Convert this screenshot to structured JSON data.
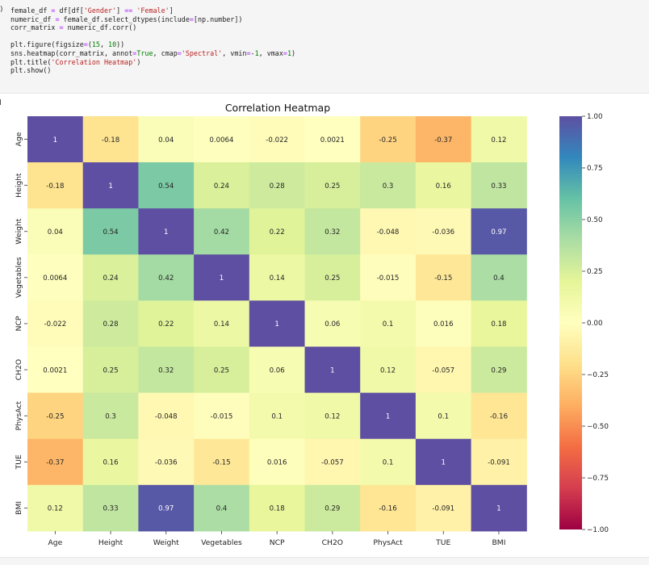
{
  "code_cell": {
    "prompt_glyph": ")",
    "lines": [
      "female_df = df[df['Gender'] == 'Female']",
      "numeric_df = female_df.select_dtypes(include=[np.number])",
      "corr_matrix = numeric_df.corr()",
      "",
      "plt.figure(figsize=(15, 10))",
      "sns.heatmap(corr_matrix, annot=True, cmap='Spectral', vmin=-1, vmax=1)",
      "plt.title('Correlation Heatmap')",
      "plt.show()"
    ]
  },
  "chart_data": {
    "type": "heatmap",
    "title": "Correlation Heatmap",
    "cmap": "Spectral",
    "vmin": -1,
    "vmax": 1,
    "labels": [
      "Age",
      "Height",
      "Weight",
      "Vegetables",
      "NCP",
      "CH2O",
      "PhysAct",
      "TUE",
      "BMI"
    ],
    "values": [
      [
        1,
        -0.18,
        0.04,
        0.0064,
        -0.022,
        0.0021,
        -0.25,
        -0.37,
        0.12
      ],
      [
        -0.18,
        1,
        0.54,
        0.24,
        0.28,
        0.25,
        0.3,
        0.16,
        0.33
      ],
      [
        0.04,
        0.54,
        1,
        0.42,
        0.22,
        0.32,
        -0.048,
        -0.036,
        0.97
      ],
      [
        0.0064,
        0.24,
        0.42,
        1,
        0.14,
        0.25,
        -0.015,
        -0.15,
        0.4
      ],
      [
        -0.022,
        0.28,
        0.22,
        0.14,
        1,
        0.06,
        0.1,
        0.016,
        0.18
      ],
      [
        0.0021,
        0.25,
        0.32,
        0.25,
        0.06,
        1,
        0.12,
        -0.057,
        0.29
      ],
      [
        -0.25,
        0.3,
        -0.048,
        -0.015,
        0.1,
        0.12,
        1,
        0.1,
        -0.16
      ],
      [
        -0.37,
        0.16,
        -0.036,
        -0.15,
        0.016,
        -0.057,
        0.1,
        1,
        -0.091
      ],
      [
        0.12,
        0.33,
        0.97,
        0.4,
        0.18,
        0.29,
        -0.16,
        -0.091,
        1
      ]
    ],
    "colorbar_ticks": [
      {
        "value": 1.0,
        "label": "1.00"
      },
      {
        "value": 0.75,
        "label": "0.75"
      },
      {
        "value": 0.5,
        "label": "0.50"
      },
      {
        "value": 0.25,
        "label": "0.25"
      },
      {
        "value": 0.0,
        "label": "0.00"
      },
      {
        "value": -0.25,
        "label": "−0.25"
      },
      {
        "value": -0.5,
        "label": "−0.50"
      },
      {
        "value": -0.75,
        "label": "−0.75"
      },
      {
        "value": -1.0,
        "label": "−1.00"
      }
    ],
    "cell_labels": [
      [
        "1",
        "-0.18",
        "0.04",
        "0.0064",
        "-0.022",
        "0.0021",
        "-0.25",
        "-0.37",
        "0.12"
      ],
      [
        "-0.18",
        "1",
        "0.54",
        "0.24",
        "0.28",
        "0.25",
        "0.3",
        "0.16",
        "0.33"
      ],
      [
        "0.04",
        "0.54",
        "1",
        "0.42",
        "0.22",
        "0.32",
        "-0.048",
        "-0.036",
        "0.97"
      ],
      [
        "0.0064",
        "0.24",
        "0.42",
        "1",
        "0.14",
        "0.25",
        "-0.015",
        "-0.15",
        "0.4"
      ],
      [
        "-0.022",
        "0.28",
        "0.22",
        "0.14",
        "1",
        "0.06",
        "0.1",
        "0.016",
        "0.18"
      ],
      [
        "0.0021",
        "0.25",
        "0.32",
        "0.25",
        "0.06",
        "1",
        "0.12",
        "-0.057",
        "0.29"
      ],
      [
        "-0.25",
        "0.3",
        "-0.048",
        "-0.015",
        "0.1",
        "0.12",
        "1",
        "0.1",
        "-0.16"
      ],
      [
        "-0.37",
        "0.16",
        "-0.036",
        "-0.15",
        "0.016",
        "-0.057",
        "0.1",
        "1",
        "-0.091"
      ],
      [
        "0.12",
        "0.33",
        "0.97",
        "0.4",
        "0.18",
        "0.29",
        "-0.16",
        "-0.091",
        "1"
      ]
    ]
  }
}
